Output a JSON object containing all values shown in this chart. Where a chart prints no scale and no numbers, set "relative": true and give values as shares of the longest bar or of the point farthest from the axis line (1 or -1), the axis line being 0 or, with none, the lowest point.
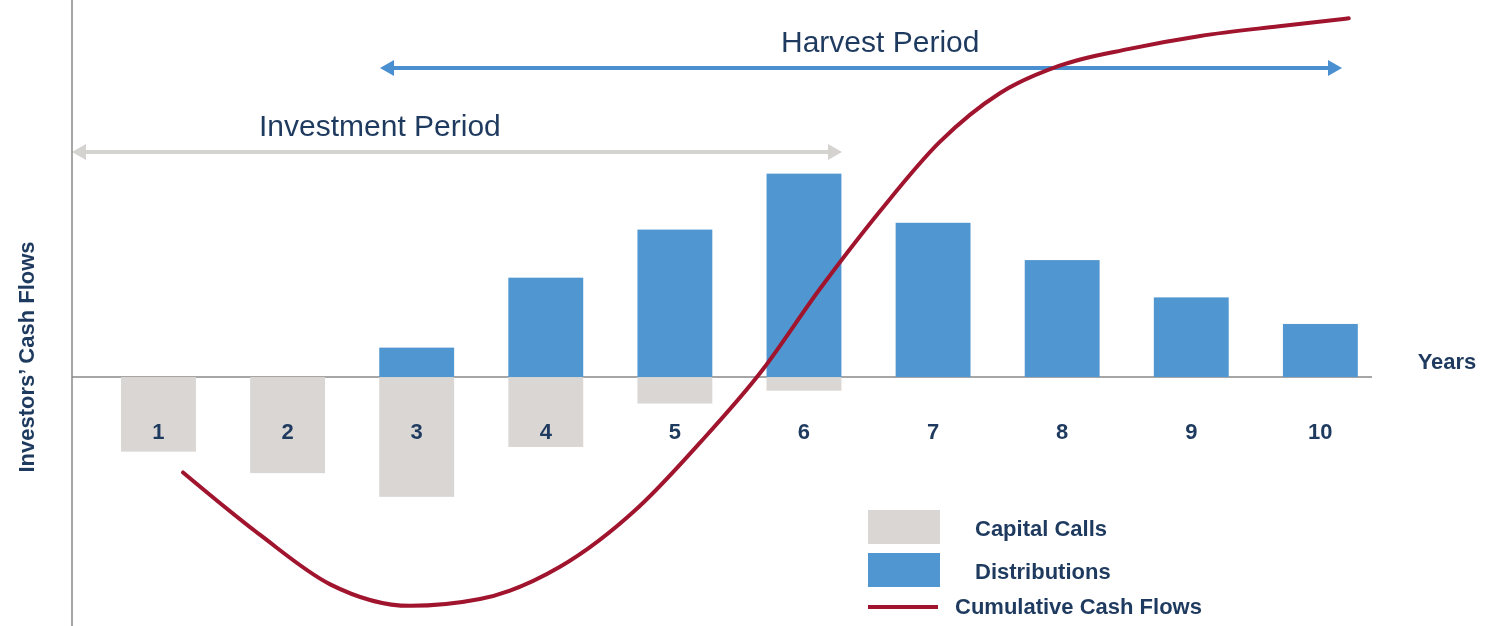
{
  "chart_data": {
    "type": "bar",
    "relative": true,
    "ylabel": "Investors’ Cash Flows",
    "xlabel": "Years",
    "x": [
      1,
      2,
      3,
      4,
      5,
      6,
      7,
      8,
      9,
      10
    ],
    "xlim": [
      0.33,
      10.4
    ],
    "xticks": [
      1,
      2,
      3,
      4,
      5,
      6,
      7,
      8,
      9,
      10
    ],
    "series": [
      {
        "name": "Capital Calls",
        "color": "#d9d6d3",
        "values": [
          -0.208,
          -0.268,
          -0.334,
          -0.195,
          -0.074,
          -0.038,
          null,
          null,
          null,
          null
        ]
      },
      {
        "name": "Distributions",
        "color": "#5096d0",
        "values": [
          null,
          null,
          0.082,
          0.277,
          0.411,
          0.567,
          0.43,
          0.326,
          0.222,
          0.148
        ]
      },
      {
        "name": "Cumulative Cash Flows",
        "type": "line",
        "color": "#a0142e",
        "x": [
          1.19,
          1.79,
          2.33,
          2.95,
          3.49,
          4.11,
          4.73,
          5.2,
          5.66,
          6.12,
          6.59,
          7.05,
          7.52,
          7.98,
          8.52,
          9.07,
          9.68,
          10.22
        ],
        "values": [
          -0.266,
          -0.441,
          -0.578,
          -0.638,
          -0.619,
          -0.529,
          -0.359,
          -0.181,
          0.011,
          0.244,
          0.463,
          0.655,
          0.792,
          0.868,
          0.915,
          0.951,
          0.978,
          1.0
        ]
      }
    ],
    "annotations": [
      "Investment Period",
      "Harvest Period"
    ],
    "legend": "bottom right"
  }
}
